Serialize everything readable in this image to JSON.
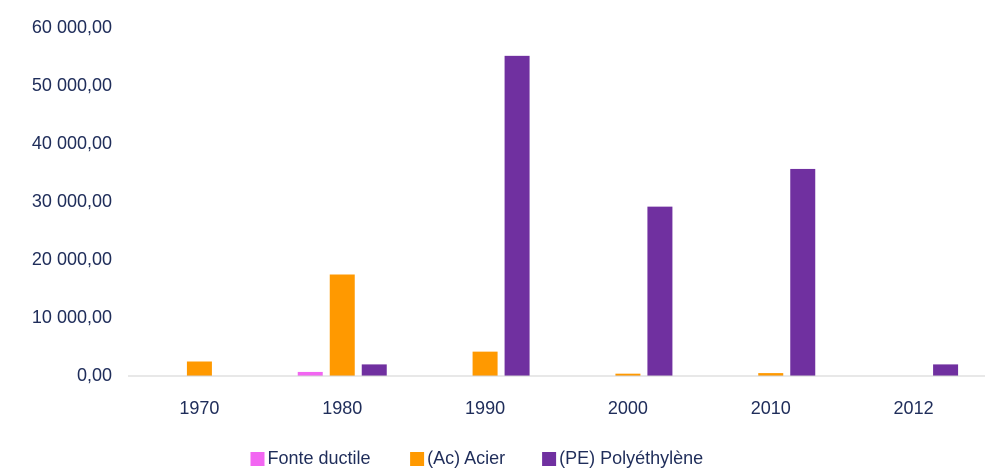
{
  "chart_data": {
    "type": "bar",
    "categories": [
      "1970",
      "1980",
      "1990",
      "2000",
      "2010",
      "2012"
    ],
    "series": [
      {
        "name": "Fonte ductile",
        "color": "#f266f2",
        "values": [
          0,
          700,
          0,
          0,
          0,
          0
        ]
      },
      {
        "name": "(Ac) Acier",
        "color": "#ff9900",
        "values": [
          2500,
          17500,
          4200,
          400,
          500,
          0
        ]
      },
      {
        "name": "(PE) Polyéthylène",
        "color": "#7030a0",
        "values": [
          0,
          2000,
          55200,
          29200,
          35700,
          2000
        ]
      }
    ],
    "ylim": [
      0,
      60000
    ],
    "yticks": [
      {
        "value": 0,
        "label": "0,00"
      },
      {
        "value": 10000,
        "label": "10 000,00"
      },
      {
        "value": 20000,
        "label": "20 000,00"
      },
      {
        "value": 30000,
        "label": "30 000,00"
      },
      {
        "value": 40000,
        "label": "40 000,00"
      },
      {
        "value": 50000,
        "label": "50 000,00"
      },
      {
        "value": 60000,
        "label": "60 000,00"
      }
    ],
    "grid": false,
    "legend": "bottom"
  }
}
